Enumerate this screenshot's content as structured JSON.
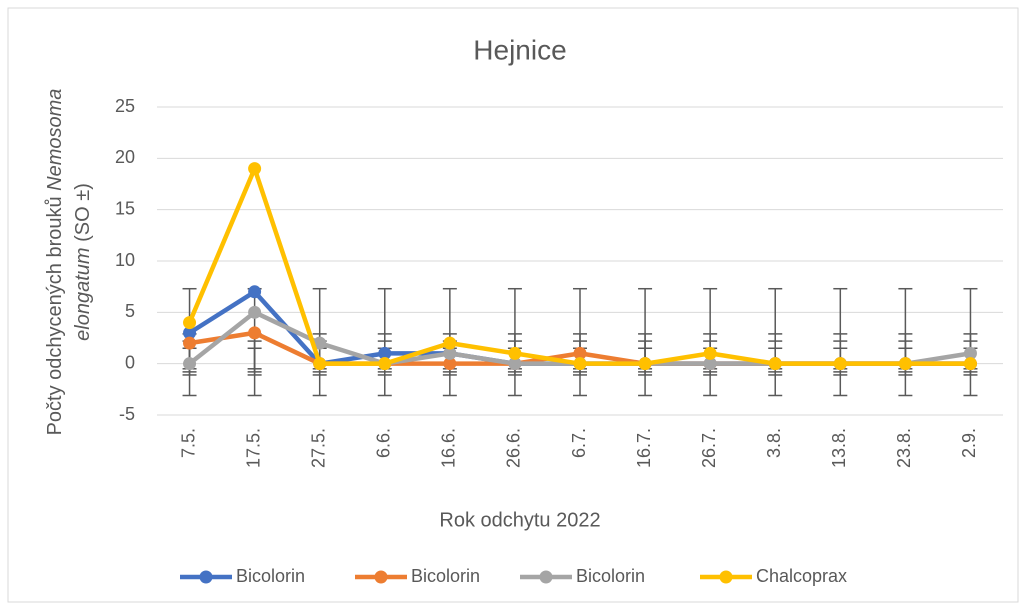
{
  "chart_data": {
    "type": "line",
    "title": "Hejnice",
    "x_label": "Rok odchytu 2022",
    "y_label": [
      "Počty odchycených brouků ",
      "Nemosoma",
      "elongatum",
      " (SO ±)"
    ],
    "categories": [
      "7.5.",
      "17.5.",
      "27.5.",
      "6.6.",
      "16.6.",
      "26.6.",
      "6.7.",
      "16.7.",
      "26.7.",
      "3.8.",
      "13.8.",
      "23.8.",
      "2.9."
    ],
    "series": [
      {
        "name": "Bicolorin",
        "color": "#4472c4",
        "values": [
          3,
          7,
          0,
          1,
          1,
          0,
          0,
          0,
          0,
          0,
          0,
          0,
          0
        ],
        "error_center": 0.9,
        "error": 2
      },
      {
        "name": "Bicolorin",
        "color": "#ed7d31",
        "values": [
          2,
          3,
          0,
          0,
          0,
          0,
          1,
          0,
          0,
          0,
          0,
          0,
          0
        ],
        "error_center": 0.5,
        "error": 1
      },
      {
        "name": "Bicolorin",
        "color": "#a5a5a5",
        "values": [
          0,
          5,
          2,
          0,
          1,
          0,
          0,
          0,
          0,
          0,
          0,
          0,
          1
        ],
        "error_center": 0.7,
        "error": 1.5
      },
      {
        "name": "Chalcoprax",
        "color": "#ffc000",
        "values": [
          4,
          19,
          0,
          0,
          2,
          1,
          0,
          0,
          1,
          0,
          0,
          0,
          0
        ],
        "error_center": 2.1,
        "error": 5.2
      }
    ],
    "ylim": [
      -5,
      25
    ],
    "yticks": [
      -5,
      0,
      5,
      10,
      15,
      20,
      25
    ],
    "grid": true,
    "legend": "bottom"
  }
}
